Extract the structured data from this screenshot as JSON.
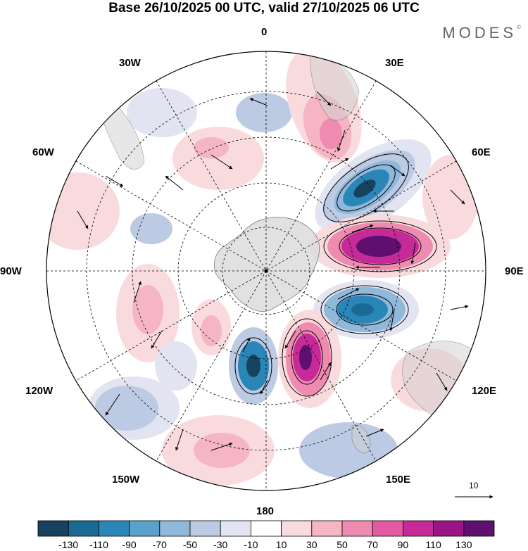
{
  "header": {
    "title": "Base 26/10/2025 00 UTC, valid 27/10/2025 06 UTC",
    "brand": "MODES",
    "brand_mark": "©"
  },
  "map": {
    "projection": "south-polar-stereographic",
    "longitude_labels": {
      "lon_0": "0",
      "lon_30E": "30E",
      "lon_60E": "60E",
      "lon_90E": "90E",
      "lon_120E": "120E",
      "lon_150E": "150E",
      "lon_180": "180",
      "lon_150W": "150W",
      "lon_120W": "120W",
      "lon_90W": "90W",
      "lon_60W": "60W",
      "lon_30W": "30W"
    },
    "vector_reference": {
      "label": "10",
      "value": 10
    }
  },
  "colorbar": {
    "tick_labels": [
      "-130",
      "-110",
      "-90",
      "-70",
      "-50",
      "-30",
      "-10",
      "10",
      "30",
      "50",
      "70",
      "90",
      "110",
      "130"
    ],
    "colors": [
      "#17435e",
      "#1b6a95",
      "#2b86b8",
      "#5aa1cc",
      "#8fb8db",
      "#bccbe3",
      "#e3e4f1",
      "#ffffff",
      "#fadbdd",
      "#f6b5c3",
      "#ef8ab0",
      "#e25aa4",
      "#c52a98",
      "#9a1486",
      "#5e0f70"
    ]
  }
}
